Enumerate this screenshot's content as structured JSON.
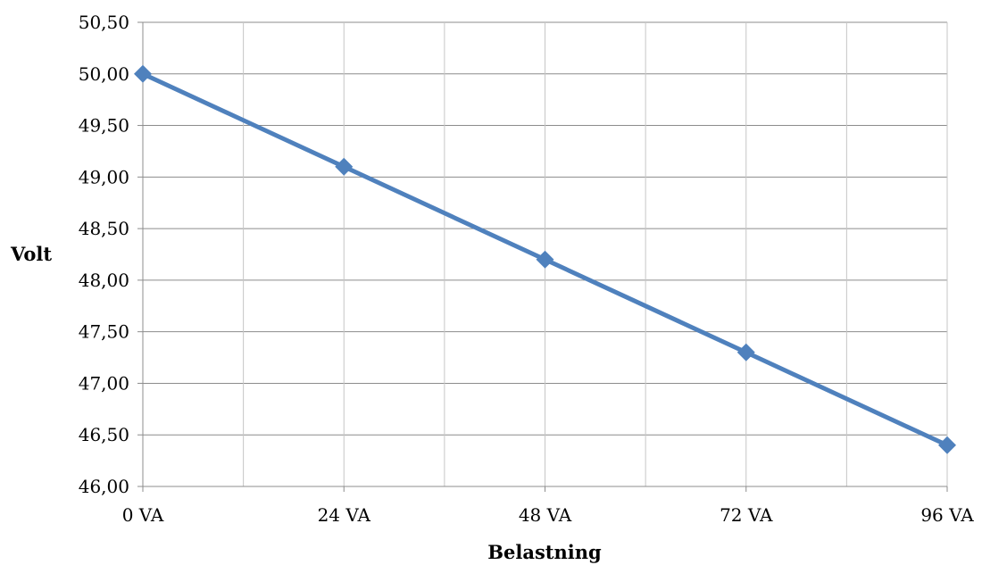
{
  "chart_data": {
    "type": "line",
    "title": "",
    "xlabel": "Belastning",
    "ylabel": "Volt",
    "categories": [
      "0 VA",
      "24 VA",
      "48 VA",
      "72 VA",
      "96 VA"
    ],
    "x": [
      0,
      24,
      48,
      72,
      96
    ],
    "xlim": [
      0,
      96
    ],
    "x_major_step": 24,
    "x_minor_step": 12,
    "ylim": [
      46.0,
      50.5
    ],
    "y_step": 0.5,
    "y_tick_labels": [
      "46,00",
      "46,50",
      "47,00",
      "47,50",
      "48,00",
      "48,50",
      "49,00",
      "49,50",
      "50,00",
      "50,50"
    ],
    "series": [
      {
        "values": [
          50.0,
          49.1,
          48.2,
          47.3,
          46.4
        ],
        "color": "#4f81bd",
        "marker": "diamond"
      }
    ],
    "grid": true,
    "legend": "none"
  }
}
